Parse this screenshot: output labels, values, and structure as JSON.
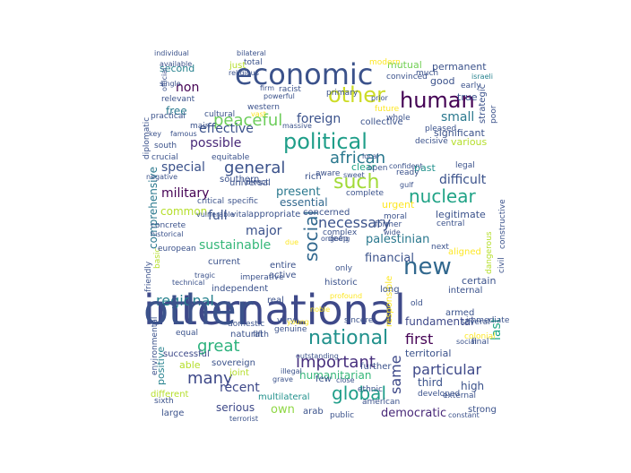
{
  "colors": {
    "background": "#ffffff",
    "palette": [
      "#440154",
      "#482878",
      "#3e4989",
      "#31688e",
      "#26828e",
      "#1f9e89",
      "#35b779",
      "#6ece58",
      "#b5de2b",
      "#fde725"
    ]
  },
  "words": [
    {
      "text": "international",
      "color": "#3e4989"
    },
    {
      "text": "economic",
      "color": "#3b528b"
    },
    {
      "text": "political",
      "color": "#1f9e89"
    },
    {
      "text": "other",
      "color": "#cddc27"
    },
    {
      "text": "human",
      "color": "#440154"
    },
    {
      "text": "new",
      "color": "#31688e"
    },
    {
      "text": "national",
      "color": "#21918c"
    },
    {
      "text": "global",
      "color": "#1f9e89"
    },
    {
      "text": "social",
      "color": "#31688e"
    },
    {
      "text": "such",
      "color": "#a2da37"
    },
    {
      "text": "nuclear",
      "color": "#20a386"
    },
    {
      "text": "important",
      "color": "#472f7d"
    },
    {
      "text": "many",
      "color": "#3e4989"
    },
    {
      "text": "great",
      "color": "#2db27d"
    },
    {
      "text": "peaceful",
      "color": "#6ccd5a"
    },
    {
      "text": "african",
      "color": "#2a788e"
    },
    {
      "text": "general",
      "color": "#3b528b"
    },
    {
      "text": "regional",
      "color": "#26828e"
    },
    {
      "text": "particular",
      "color": "#3e4989"
    },
    {
      "text": "first",
      "color": "#440154"
    },
    {
      "text": "same",
      "color": "#3e4989"
    },
    {
      "text": "necessary",
      "color": "#3b528b"
    },
    {
      "text": "foreign",
      "color": "#3b528b"
    },
    {
      "text": "effective",
      "color": "#3b528b"
    },
    {
      "text": "special",
      "color": "#3b528b"
    },
    {
      "text": "possible",
      "color": "#482878"
    },
    {
      "text": "military",
      "color": "#440154"
    },
    {
      "text": "sustainable",
      "color": "#35b779"
    },
    {
      "text": "palestinian",
      "color": "#2a788e"
    },
    {
      "text": "financial",
      "color": "#3b528b"
    },
    {
      "text": "democratic",
      "color": "#482878"
    },
    {
      "text": "last",
      "color": "#22a884"
    },
    {
      "text": "recent",
      "color": "#3e4989"
    },
    {
      "text": "full",
      "color": "#3b528b"
    },
    {
      "text": "non",
      "color": "#440154"
    },
    {
      "text": "small",
      "color": "#2a788e"
    },
    {
      "text": "major",
      "color": "#3b528b"
    },
    {
      "text": "fundamental",
      "color": "#3e4989"
    },
    {
      "text": "high",
      "color": "#3b528b"
    },
    {
      "text": "own",
      "color": "#8fd744"
    },
    {
      "text": "difficult",
      "color": "#3b528b"
    },
    {
      "text": "common",
      "color": "#b5de2b"
    },
    {
      "text": "present",
      "color": "#2a788e"
    },
    {
      "text": "free",
      "color": "#2a788e"
    },
    {
      "text": "essential",
      "color": "#31688e"
    },
    {
      "text": "serious",
      "color": "#3e4989"
    },
    {
      "text": "third",
      "color": "#3b528b"
    },
    {
      "text": "comprehensive",
      "color": "#2a788e"
    },
    {
      "text": "humanitarian",
      "color": "#35b779"
    },
    {
      "text": "permanent",
      "color": "#3b528b"
    },
    {
      "text": "mutual",
      "color": "#73d056"
    },
    {
      "text": "significant",
      "color": "#3b528b"
    },
    {
      "text": "various",
      "color": "#b5de2b"
    },
    {
      "text": "positive",
      "color": "#26828e"
    },
    {
      "text": "able",
      "color": "#b5de2b"
    },
    {
      "text": "urgent",
      "color": "#fde725"
    },
    {
      "text": "territorial",
      "color": "#3b528b"
    },
    {
      "text": "certain",
      "color": "#3b528b"
    },
    {
      "text": "responsible",
      "color": "#fde725"
    },
    {
      "text": "second",
      "color": "#26828e"
    },
    {
      "text": "good",
      "color": "#3b528b"
    },
    {
      "text": "clear",
      "color": "#20a386"
    },
    {
      "text": "true",
      "color": "#3b528b"
    },
    {
      "text": "past",
      "color": "#21918c"
    },
    {
      "text": "concerned",
      "color": "#3b528b"
    },
    {
      "text": "legitimate",
      "color": "#3b528b"
    },
    {
      "text": "universal",
      "color": "#3b528b"
    },
    {
      "text": "southern",
      "color": "#3b528b"
    },
    {
      "text": "current",
      "color": "#3b528b"
    },
    {
      "text": "entire",
      "color": "#3b528b"
    },
    {
      "text": "independent",
      "color": "#3b528b"
    },
    {
      "text": "successful",
      "color": "#3e4989"
    },
    {
      "text": "natural",
      "color": "#3b528b"
    },
    {
      "text": "sovereign",
      "color": "#3b528b"
    },
    {
      "text": "multilateral",
      "color": "#21918c"
    },
    {
      "text": "arab",
      "color": "#3b528b"
    },
    {
      "text": "strong",
      "color": "#3b528b"
    },
    {
      "text": "large",
      "color": "#3b528b"
    },
    {
      "text": "different",
      "color": "#b5de2b"
    },
    {
      "text": "joint",
      "color": "#b5de2b"
    },
    {
      "text": "real",
      "color": "#3b528b"
    },
    {
      "text": "active",
      "color": "#3b528b"
    },
    {
      "text": "appropriate",
      "color": "#3b528b"
    },
    {
      "text": "long",
      "color": "#3b528b"
    },
    {
      "text": "historic",
      "color": "#3b528b"
    },
    {
      "text": "aligned",
      "color": "#fde725"
    },
    {
      "text": "armed",
      "color": "#3b528b"
    },
    {
      "text": "internal",
      "color": "#3b528b"
    },
    {
      "text": "few",
      "color": "#3b528b"
    },
    {
      "text": "further",
      "color": "#3b528b"
    },
    {
      "text": "collective",
      "color": "#3b528b"
    },
    {
      "text": "primary",
      "color": "#3b528b"
    },
    {
      "text": "western",
      "color": "#3b528b"
    },
    {
      "text": "cultural",
      "color": "#3b528b"
    },
    {
      "text": "main",
      "color": "#3b528b"
    },
    {
      "text": "practical",
      "color": "#3b528b"
    },
    {
      "text": "relevant",
      "color": "#3b528b"
    },
    {
      "text": "total",
      "color": "#3b528b"
    },
    {
      "text": "diplomatic",
      "color": "#3b528b"
    },
    {
      "text": "just",
      "color": "#b5de2b"
    },
    {
      "text": "south",
      "color": "#3b528b"
    },
    {
      "text": "crucial",
      "color": "#3b528b"
    },
    {
      "text": "rich",
      "color": "#3b528b"
    },
    {
      "text": "critical",
      "color": "#3b528b"
    },
    {
      "text": "specific",
      "color": "#3b528b"
    },
    {
      "text": "direct",
      "color": "#3b528b"
    },
    {
      "text": "equitable",
      "color": "#3b528b"
    },
    {
      "text": "aware",
      "color": "#3b528b"
    },
    {
      "text": "complete",
      "color": "#3b528b"
    },
    {
      "text": "open",
      "color": "#3b528b"
    },
    {
      "text": "ready",
      "color": "#3b528b"
    },
    {
      "text": "legal",
      "color": "#3b528b"
    },
    {
      "text": "constructive",
      "color": "#3b528b"
    },
    {
      "text": "central",
      "color": "#3b528b"
    },
    {
      "text": "moral",
      "color": "#3b528b"
    },
    {
      "text": "former",
      "color": "#3b528b"
    },
    {
      "text": "next",
      "color": "#3b528b"
    },
    {
      "text": "old",
      "color": "#3b528b"
    },
    {
      "text": "immediate",
      "color": "#3b528b"
    },
    {
      "text": "civil",
      "color": "#3b528b"
    },
    {
      "text": "dangerous",
      "color": "#b5de2b"
    },
    {
      "text": "complex",
      "color": "#3b528b"
    },
    {
      "text": "deep",
      "color": "#3b528b"
    },
    {
      "text": "only",
      "color": "#3b528b"
    },
    {
      "text": "friendly",
      "color": "#3b528b"
    },
    {
      "text": "basic",
      "color": "#b5de2b"
    },
    {
      "text": "vital",
      "color": "#3b528b"
    },
    {
      "text": "concrete",
      "color": "#3b528b"
    },
    {
      "text": "european",
      "color": "#3b528b"
    },
    {
      "text": "imperative",
      "color": "#3b528b"
    },
    {
      "text": "fifth",
      "color": "#3b528b"
    },
    {
      "text": "genuine",
      "color": "#3b528b"
    },
    {
      "text": "very",
      "color": "#3b528b"
    },
    {
      "text": "domestic",
      "color": "#3b528b"
    },
    {
      "text": "equal",
      "color": "#3b528b"
    },
    {
      "text": "sincere",
      "color": "#3b528b"
    },
    {
      "text": "ethnic",
      "color": "#3b528b"
    },
    {
      "text": "american",
      "color": "#3b528b"
    },
    {
      "text": "public",
      "color": "#3b528b"
    },
    {
      "text": "developed",
      "color": "#3b528b"
    },
    {
      "text": "external",
      "color": "#3b528b"
    },
    {
      "text": "several",
      "color": "#3b528b"
    },
    {
      "text": "colonial",
      "color": "#fde725"
    },
    {
      "text": "final",
      "color": "#3b528b"
    },
    {
      "text": "sixth",
      "color": "#3b528b"
    },
    {
      "text": "environmental",
      "color": "#3b528b"
    },
    {
      "text": "terrorist",
      "color": "#3b528b"
    },
    {
      "text": "constant",
      "color": "#3b528b"
    },
    {
      "text": "decisive",
      "color": "#3b528b"
    },
    {
      "text": "pleased",
      "color": "#3b528b"
    },
    {
      "text": "future",
      "color": "#fde725"
    },
    {
      "text": "whole",
      "color": "#3b528b"
    },
    {
      "text": "convinced",
      "color": "#3b528b"
    },
    {
      "text": "much",
      "color": "#3b528b"
    },
    {
      "text": "early",
      "color": "#3b528b"
    },
    {
      "text": "poor",
      "color": "#3b528b"
    },
    {
      "text": "strategic",
      "color": "#3b528b"
    },
    {
      "text": "israeli",
      "color": "#26828e"
    },
    {
      "text": "modern",
      "color": "#fde725"
    },
    {
      "text": "racist",
      "color": "#3b528b"
    },
    {
      "text": "bilateral",
      "color": "#3b528b"
    },
    {
      "text": "individual",
      "color": "#3b528b"
    },
    {
      "text": "religious",
      "color": "#3b528b"
    },
    {
      "text": "single",
      "color": "#3b528b"
    },
    {
      "text": "available",
      "color": "#3b528b"
    },
    {
      "text": "official",
      "color": "#3b528b"
    },
    {
      "text": "tragic",
      "color": "#3b528b"
    },
    {
      "text": "technical",
      "color": "#3b528b"
    },
    {
      "text": "historical",
      "color": "#3b528b"
    },
    {
      "text": "due",
      "color": "#fde725"
    },
    {
      "text": "noble",
      "color": "#fde725"
    },
    {
      "text": "ongoing",
      "color": "#3b528b"
    },
    {
      "text": "profound",
      "color": "#fde725"
    },
    {
      "text": "young",
      "color": "#fde725"
    },
    {
      "text": "illegal",
      "color": "#3b528b"
    },
    {
      "text": "grave",
      "color": "#3b528b"
    },
    {
      "text": "close",
      "color": "#3b528b"
    },
    {
      "text": "social",
      "color": "#3b528b"
    },
    {
      "text": "outstanding",
      "color": "#3b528b"
    },
    {
      "text": "massive",
      "color": "#3b528b"
    },
    {
      "text": "vast",
      "color": "#fde725"
    },
    {
      "text": "firm",
      "color": "#3b528b"
    },
    {
      "text": "powerful",
      "color": "#3b528b"
    },
    {
      "text": "negative",
      "color": "#3b528b"
    },
    {
      "text": "vulnerable",
      "color": "#3b528b"
    },
    {
      "text": "key",
      "color": "#3b528b"
    },
    {
      "text": "famous",
      "color": "#3b528b"
    },
    {
      "text": "local",
      "color": "#3b528b"
    },
    {
      "text": "sweet",
      "color": "#3b528b"
    },
    {
      "text": "wide",
      "color": "#3b528b"
    },
    {
      "text": "confident",
      "color": "#3b528b"
    },
    {
      "text": "gulf",
      "color": "#3b528b"
    },
    {
      "text": "prior",
      "color": "#3b528b"
    },
    {
      "text": "other",
      "color": "#3b528b"
    }
  ]
}
